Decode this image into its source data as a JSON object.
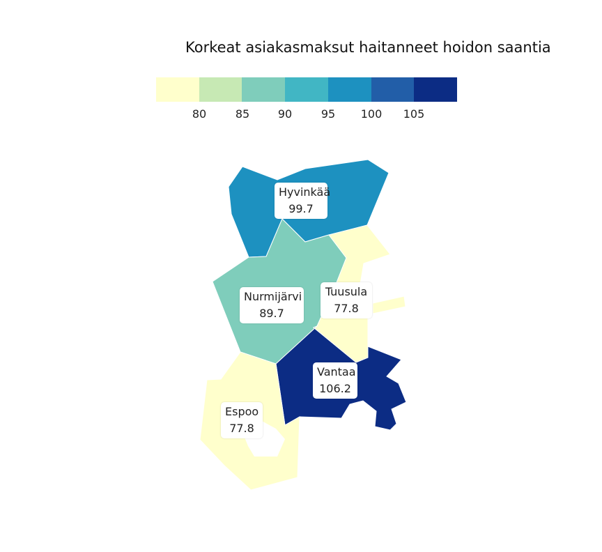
{
  "title": "Korkeat asiakasmaksut haitanneet hoidon saantia",
  "legend": {
    "colors": [
      "#ffffcc",
      "#c7e9b4",
      "#7fcdbb",
      "#41b6c4",
      "#1d91c0",
      "#225ea8",
      "#0c2c84"
    ],
    "ticks": [
      "80",
      "85",
      "90",
      "95",
      "100",
      "105"
    ]
  },
  "regions": [
    {
      "name": "Hyvinkää",
      "value": "99.7",
      "color": "#1d91c0"
    },
    {
      "name": "Nurmijärvi",
      "value": "89.7",
      "color": "#7fcdbb"
    },
    {
      "name": "Tuusula",
      "value": "77.8",
      "color": "#ffffcc"
    },
    {
      "name": "Vantaa",
      "value": "106.2",
      "color": "#0c2c84"
    },
    {
      "name": "Espoo",
      "value": "77.8",
      "color": "#ffffcc"
    }
  ]
}
